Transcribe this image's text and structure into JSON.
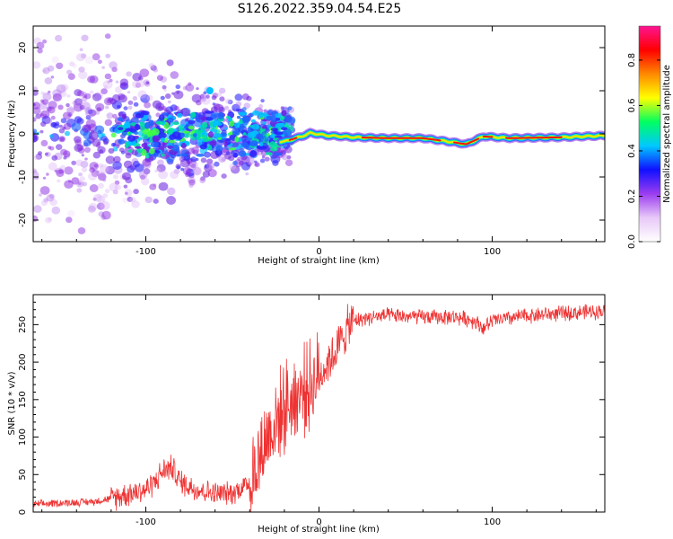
{
  "figure": {
    "title": "S126.2022.359.04.54.E25"
  },
  "chart_data": [
    {
      "type": "heatmap",
      "title": "S126.2022.359.04.54.E25",
      "xlabel": "Height of straight line (km)",
      "ylabel": "Frequency (Hz)",
      "xlim": [
        -165,
        165
      ],
      "ylim": [
        -25,
        25
      ],
      "x_ticks": [
        -100,
        0,
        100
      ],
      "y_ticks": [
        -20,
        -10,
        0,
        10,
        20
      ],
      "x_tick_labels": [
        "-100",
        "0",
        "100"
      ],
      "y_tick_labels": [
        "-20",
        "-10",
        "0",
        "10",
        "20"
      ],
      "colorbar": {
        "label": "Normalized spectral amplitude",
        "range": [
          0.0,
          0.95
        ],
        "ticks": [
          0.0,
          0.2,
          0.4,
          0.6,
          0.8
        ],
        "tick_labels": [
          "0.0",
          "0.2",
          "0.4",
          "0.6",
          "0.8"
        ],
        "colormap": [
          "#ffffff",
          "#e8c8f8",
          "#9b3df0",
          "#1010ff",
          "#00c8ff",
          "#00ff60",
          "#ffff00",
          "#ff8800",
          "#ff0000",
          "#ff1493"
        ]
      },
      "ridge_freq_hz": [
        {
          "x": -20,
          "f": -1.8
        },
        {
          "x": -10,
          "f": -0.6
        },
        {
          "x": -5,
          "f": 0.2
        },
        {
          "x": 5,
          "f": -0.4
        },
        {
          "x": 20,
          "f": -0.8
        },
        {
          "x": 40,
          "f": -1.0
        },
        {
          "x": 60,
          "f": -1.0
        },
        {
          "x": 75,
          "f": -1.8
        },
        {
          "x": 85,
          "f": -2.4
        },
        {
          "x": 95,
          "f": -0.6
        },
        {
          "x": 110,
          "f": -1.0
        },
        {
          "x": 140,
          "f": -0.8
        },
        {
          "x": 165,
          "f": -0.4
        }
      ]
    },
    {
      "type": "line",
      "xlabel": "Height of straight line (km)",
      "ylabel": "SNR (10 * v/v)",
      "xlim": [
        -165,
        165
      ],
      "ylim": [
        0,
        290
      ],
      "x_ticks": [
        -100,
        0,
        100
      ],
      "y_ticks": [
        0,
        50,
        100,
        150,
        200,
        250
      ],
      "x_tick_labels": [
        "-100",
        "0",
        "100"
      ],
      "y_tick_labels": [
        "0",
        "50",
        "100",
        "150",
        "200",
        "250"
      ],
      "color": "#ee3333",
      "series": [
        {
          "x": [
            -165,
            -150,
            -130,
            -120,
            -110,
            -100,
            -95,
            -90,
            -85,
            -80,
            -70,
            -60,
            -50,
            -40,
            -35,
            -30,
            -25,
            -20,
            -15,
            -10,
            -5,
            0,
            5,
            10,
            15,
            20,
            30,
            40,
            60,
            80,
            90,
            95,
            100,
            120,
            140,
            165
          ],
          "y": [
            10,
            12,
            14,
            18,
            25,
            30,
            40,
            55,
            60,
            40,
            30,
            25,
            25,
            40,
            70,
            100,
            120,
            140,
            150,
            160,
            170,
            180,
            200,
            215,
            240,
            255,
            260,
            262,
            260,
            260,
            255,
            245,
            255,
            262,
            265,
            268
          ]
        }
      ]
    }
  ]
}
